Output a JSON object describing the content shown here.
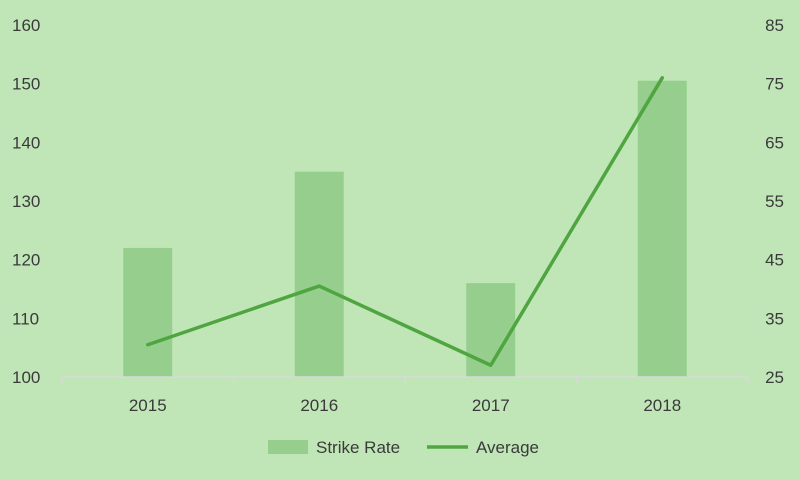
{
  "chart_data": {
    "type": "bar",
    "categories": [
      "2015",
      "2016",
      "2017",
      "2018"
    ],
    "series": [
      {
        "name": "Strike Rate",
        "type": "bar",
        "axis": "left",
        "values": [
          122,
          135,
          116,
          150.5
        ]
      },
      {
        "name": "Average",
        "type": "line",
        "axis": "right",
        "values": [
          30.5,
          40.5,
          27,
          76
        ]
      }
    ],
    "title": "",
    "xlabel": "",
    "ylabel": "",
    "ylim": [
      100,
      160
    ],
    "y_ticks": [
      "100",
      "110",
      "120",
      "130",
      "140",
      "150",
      "160"
    ],
    "y2lim": [
      25,
      85
    ],
    "y2_ticks": [
      "25",
      "35",
      "45",
      "55",
      "65",
      "75",
      "85"
    ],
    "grid": false,
    "legend_position": "bottom",
    "colors": {
      "bar": "#96ce8e",
      "line": "#4fa540",
      "axis": "#d8d8d8",
      "background": "#c0e6b8"
    }
  }
}
